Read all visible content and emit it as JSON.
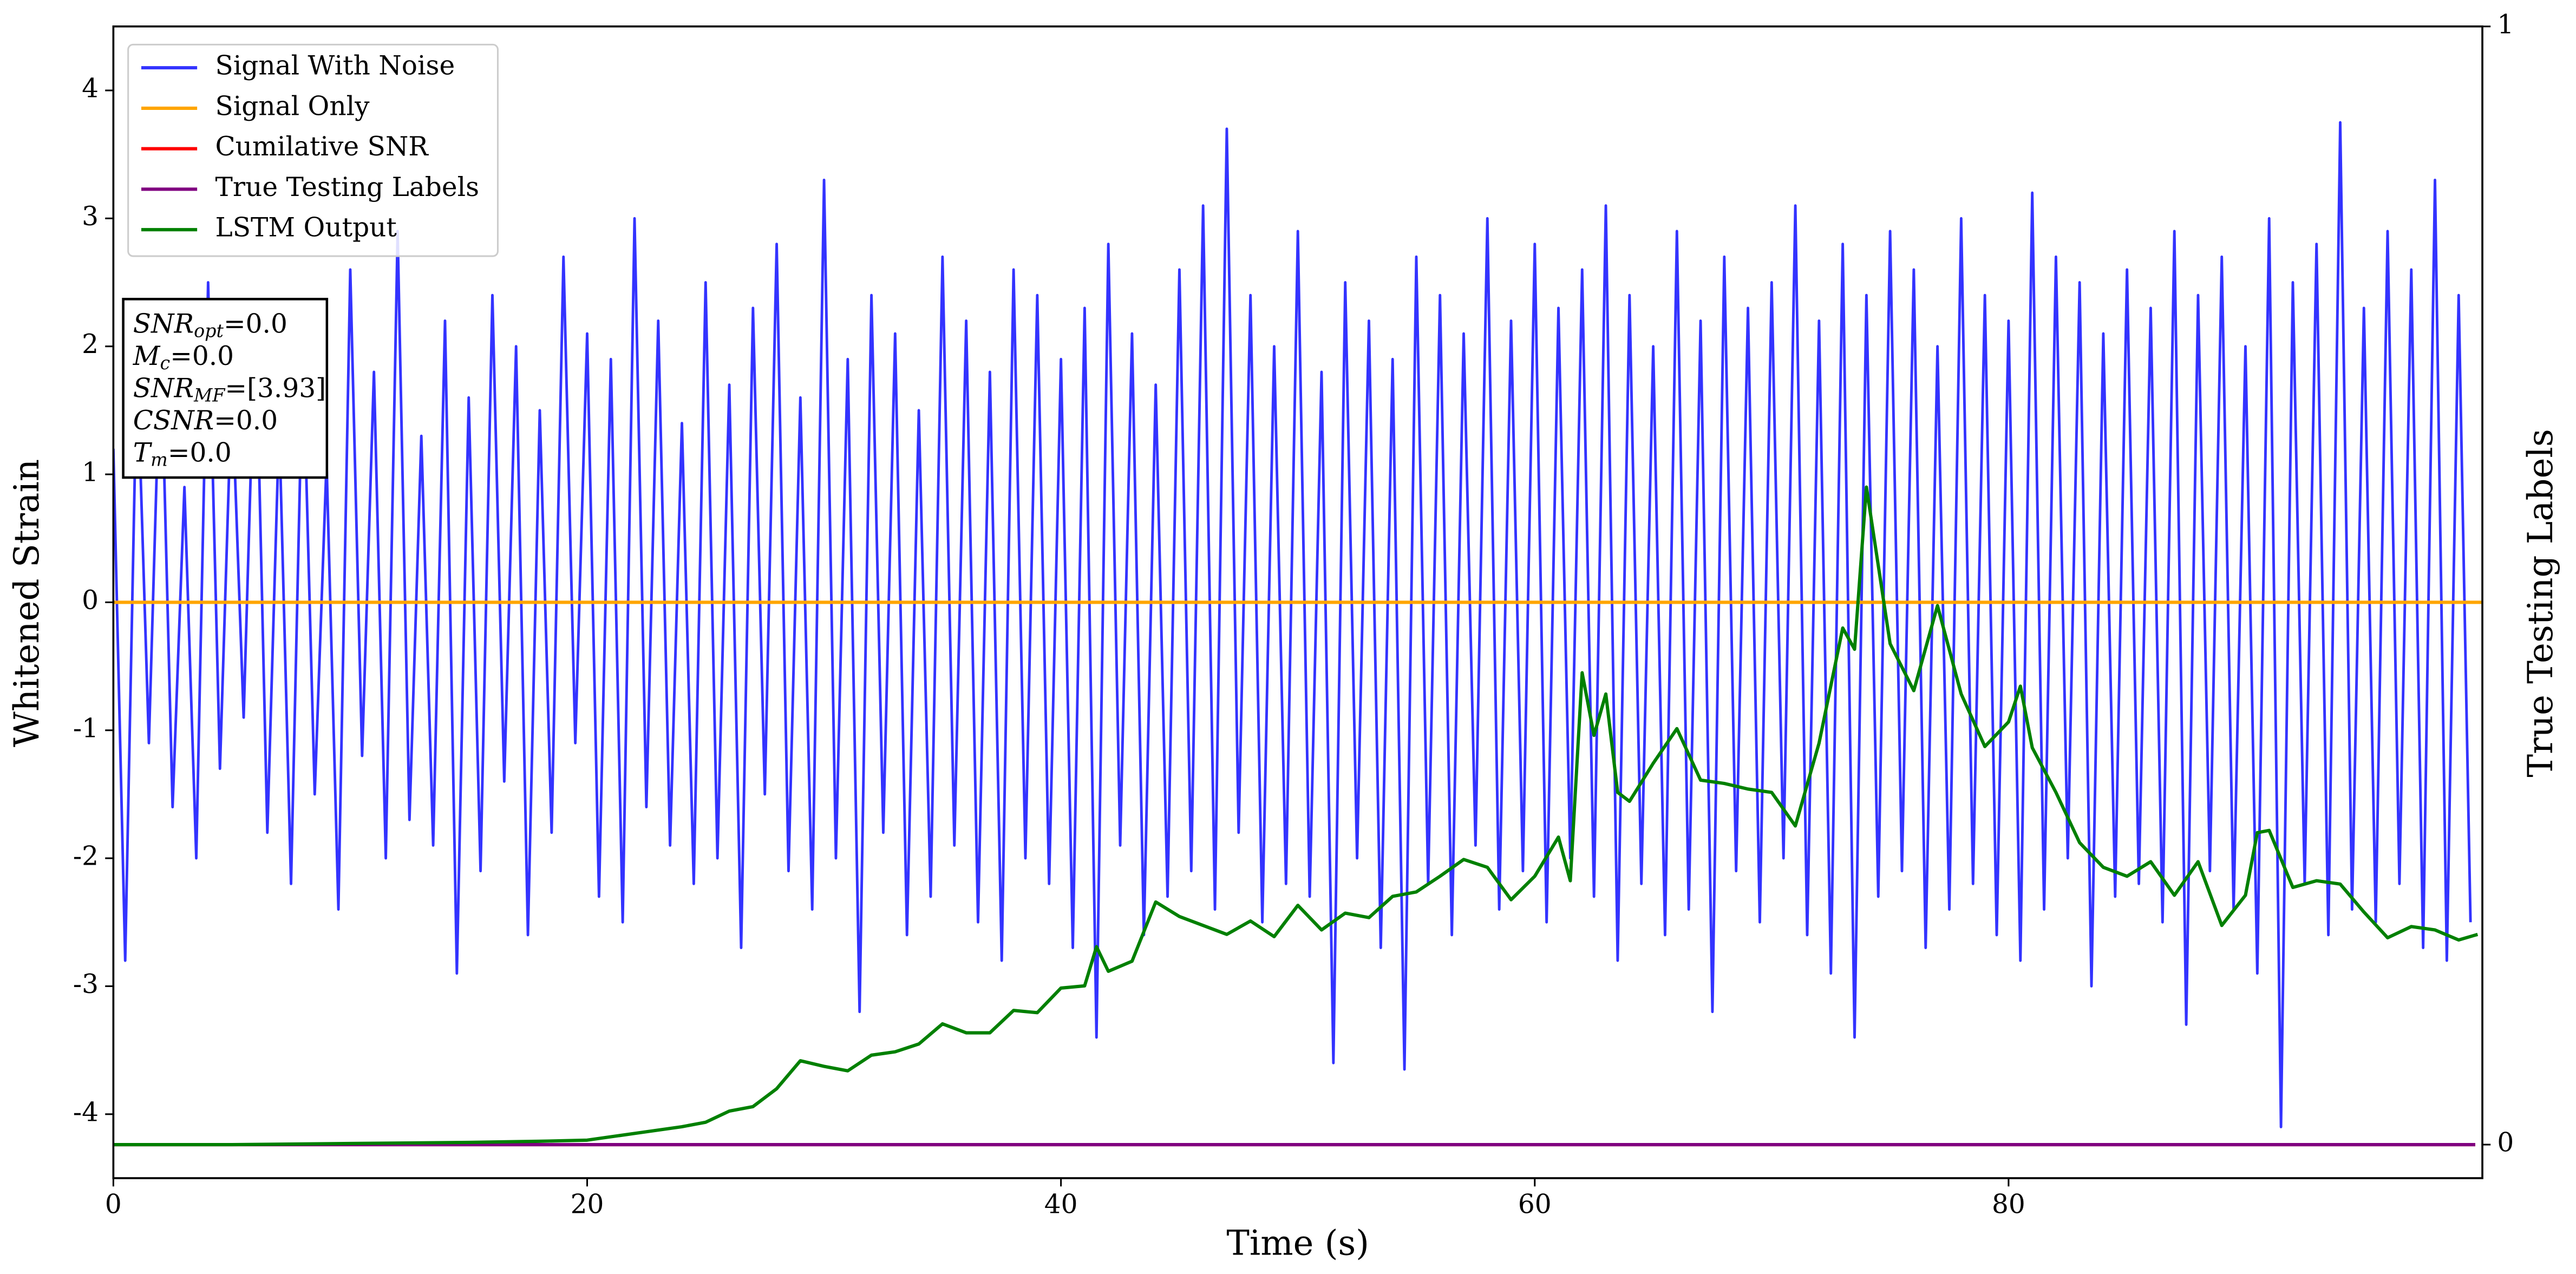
{
  "chart_data": {
    "type": "line",
    "xlabel": "Time (s)",
    "ylabel": "Whitened Strain",
    "y2label": "True Testing Labels",
    "xlim": [
      0,
      100
    ],
    "ylim": [
      -4.5,
      4.5
    ],
    "y2lim": [
      -0.03,
      1
    ],
    "xticks": [
      0,
      20,
      40,
      60,
      80
    ],
    "yticks": [
      -4,
      -3,
      -2,
      -1,
      0,
      1,
      2,
      3,
      4
    ],
    "y2ticks": [
      0,
      1
    ],
    "legend": "upper left",
    "annotations": [
      {
        "main": "SNR",
        "sub": "opt",
        "rest": "=0.0"
      },
      {
        "main": "M",
        "sub": "c",
        "rest": "=0.0"
      },
      {
        "main": "SNR",
        "sub": "MF",
        "rest": "=[3.93]"
      },
      {
        "main": "CSNR",
        "rest": "=0.0"
      },
      {
        "main": "T",
        "sub": "m",
        "rest": "=0.0"
      }
    ],
    "series": [
      {
        "name": "Signal With Noise",
        "color": "#3333ff",
        "axis": "y",
        "x": [
          0,
          0.5,
          1,
          1.5,
          2,
          2.5,
          3,
          3.5,
          4,
          4.5,
          5,
          5.5,
          6,
          6.5,
          7,
          7.5,
          8,
          8.5,
          9,
          9.5,
          10,
          10.5,
          11,
          11.5,
          12,
          12.5,
          13,
          13.5,
          14,
          14.5,
          15,
          15.5,
          16,
          16.5,
          17,
          17.5,
          18,
          18.5,
          19,
          19.5,
          20,
          20.5,
          21,
          21.5,
          22,
          22.5,
          23,
          23.5,
          24,
          24.5,
          25,
          25.5,
          26,
          26.5,
          27,
          27.5,
          28,
          28.5,
          29,
          29.5,
          30,
          30.5,
          31,
          31.5,
          32,
          32.5,
          33,
          33.5,
          34,
          34.5,
          35,
          35.5,
          36,
          36.5,
          37,
          37.5,
          38,
          38.5,
          39,
          39.5,
          40,
          40.5,
          41,
          41.5,
          42,
          42.5,
          43,
          43.5,
          44,
          44.5,
          45,
          45.5,
          46,
          46.5,
          47,
          47.5,
          48,
          48.5,
          49,
          49.5,
          50,
          50.5,
          51,
          51.5,
          52,
          52.5,
          53,
          53.5,
          54,
          54.5,
          55,
          55.5,
          56,
          56.5,
          57,
          57.5,
          58,
          58.5,
          59,
          59.5,
          60,
          60.5,
          61,
          61.5,
          62,
          62.5,
          63,
          63.5,
          64,
          64.5,
          65,
          65.5,
          66,
          66.5,
          67,
          67.5,
          68,
          68.5,
          69,
          69.5,
          70,
          70.5,
          71,
          71.5,
          72,
          72.5,
          73,
          73.5,
          74,
          74.5,
          75,
          75.5,
          76,
          76.5,
          77,
          77.5,
          78,
          78.5,
          79,
          79.5,
          80,
          80.5,
          81,
          81.5,
          82,
          82.5,
          83,
          83.5,
          84,
          84.5,
          85,
          85.5,
          86,
          86.5,
          87,
          87.5,
          88,
          88.5,
          89,
          89.5,
          90,
          90.5,
          91,
          91.5,
          92,
          92.5,
          93,
          93.5,
          94,
          94.5,
          95,
          95.5,
          96,
          96.5,
          97,
          97.5,
          98,
          98.5,
          99,
          99.5
        ],
        "values": [
          1.2,
          -2.8,
          1.9,
          -1.1,
          2.1,
          -1.6,
          0.9,
          -2.0,
          2.5,
          -1.3,
          1.7,
          -0.9,
          2.3,
          -1.8,
          1.4,
          -2.2,
          2.0,
          -1.5,
          1.1,
          -2.4,
          2.6,
          -1.2,
          1.8,
          -2.0,
          2.9,
          -1.7,
          1.3,
          -1.9,
          2.2,
          -2.9,
          1.6,
          -2.1,
          2.4,
          -1.4,
          2.0,
          -2.6,
          1.5,
          -1.8,
          2.7,
          -1.1,
          2.1,
          -2.3,
          1.9,
          -2.5,
          3.0,
          -1.6,
          2.2,
          -1.9,
          1.4,
          -2.2,
          2.5,
          -2.0,
          1.7,
          -2.7,
          2.3,
          -1.5,
          2.8,
          -2.1,
          1.6,
          -2.4,
          3.3,
          -2.0,
          1.9,
          -3.2,
          2.4,
          -1.8,
          2.1,
          -2.6,
          1.5,
          -2.3,
          2.7,
          -1.9,
          2.2,
          -2.5,
          1.8,
          -2.8,
          2.6,
          -2.0,
          2.4,
          -2.2,
          1.9,
          -2.7,
          2.3,
          -3.4,
          2.8,
          -1.9,
          2.1,
          -2.6,
          1.7,
          -2.3,
          2.6,
          -2.1,
          3.1,
          -2.4,
          3.7,
          -1.8,
          2.4,
          -2.5,
          2.0,
          -2.2,
          2.9,
          -2.3,
          1.8,
          -3.6,
          2.5,
          -2.0,
          2.2,
          -2.7,
          1.9,
          -3.65,
          2.7,
          -2.2,
          2.4,
          -2.6,
          2.1,
          -1.9,
          3.0,
          -2.4,
          2.2,
          -2.1,
          2.8,
          -2.5,
          2.3,
          -2.0,
          2.6,
          -2.3,
          3.1,
          -2.8,
          2.4,
          -2.2,
          2.0,
          -2.6,
          2.9,
          -2.4,
          2.2,
          -3.2,
          2.7,
          -2.1,
          2.3,
          -2.5,
          2.5,
          -2.0,
          3.1,
          -2.6,
          2.2,
          -2.9,
          2.8,
          -3.4,
          2.4,
          -2.3,
          2.9,
          -2.1,
          2.6,
          -2.7,
          2.0,
          -2.4,
          3.0,
          -2.2,
          2.4,
          -2.6,
          2.2,
          -2.8,
          3.2,
          -2.4,
          2.7,
          -2.0,
          2.5,
          -3.0,
          2.1,
          -2.3,
          2.6,
          -2.2,
          2.3,
          -2.5,
          2.9,
          -3.3,
          2.4,
          -2.1,
          2.7,
          -2.4,
          2.0,
          -2.9,
          3.0,
          -4.1,
          2.5,
          -2.2,
          2.8,
          -2.6,
          3.75,
          -2.4,
          2.3,
          -2.5,
          2.9,
          -2.2,
          2.6,
          -2.7,
          3.3,
          -2.8,
          2.4,
          -2.5
        ]
      },
      {
        "name": "Signal Only",
        "color": "#ffa500",
        "axis": "y",
        "x": [
          0,
          100
        ],
        "values": [
          0,
          0
        ]
      },
      {
        "name": "Cumilative SNR",
        "color": "#ff0000",
        "axis": "y2",
        "x": [
          0,
          99.7
        ],
        "values": [
          0,
          0
        ]
      },
      {
        "name": "True Testing Labels",
        "color": "#800080",
        "axis": "y2",
        "x": [
          0,
          99.7
        ],
        "values": [
          0,
          0
        ]
      },
      {
        "name": "LSTM Output",
        "color": "#008000",
        "axis": "y2",
        "x": [
          0,
          5,
          10,
          15,
          18,
          20,
          22,
          24,
          25,
          26,
          27,
          28,
          29,
          30,
          31,
          32,
          33,
          34,
          35,
          36,
          37,
          38,
          39,
          40,
          41,
          41.5,
          42,
          43,
          44,
          45,
          46,
          47,
          48,
          49,
          50,
          51,
          52,
          53,
          54,
          55,
          56,
          57,
          58,
          59,
          60,
          61,
          61.5,
          62,
          62.5,
          63,
          63.5,
          64,
          65,
          66,
          67,
          68,
          69,
          70,
          71,
          72,
          73,
          73.5,
          74,
          75,
          76,
          77,
          78,
          79,
          80,
          80.5,
          81,
          82,
          83,
          84,
          85,
          86,
          87,
          88,
          89,
          90,
          90.5,
          91,
          92,
          93,
          94,
          95,
          96,
          97,
          98,
          99,
          99.8
        ],
        "values": [
          0,
          0,
          0.001,
          0.002,
          0.003,
          0.004,
          0.01,
          0.016,
          0.02,
          0.03,
          0.034,
          0.05,
          0.075,
          0.07,
          0.066,
          0.08,
          0.083,
          0.09,
          0.108,
          0.1,
          0.1,
          0.12,
          0.118,
          0.14,
          0.142,
          0.177,
          0.155,
          0.164,
          0.217,
          0.204,
          0.196,
          0.188,
          0.2,
          0.186,
          0.214,
          0.192,
          0.207,
          0.203,
          0.222,
          0.226,
          0.24,
          0.255,
          0.248,
          0.219,
          0.24,
          0.275,
          0.236,
          0.422,
          0.366,
          0.403,
          0.315,
          0.307,
          0.341,
          0.372,
          0.326,
          0.323,
          0.318,
          0.315,
          0.285,
          0.359,
          0.462,
          0.443,
          0.588,
          0.448,
          0.406,
          0.482,
          0.403,
          0.356,
          0.378,
          0.41,
          0.355,
          0.315,
          0.27,
          0.248,
          0.24,
          0.253,
          0.223,
          0.253,
          0.196,
          0.223,
          0.279,
          0.281,
          0.23,
          0.236,
          0.233,
          0.208,
          0.185,
          0.195,
          0.192,
          0.183,
          0.188
        ]
      }
    ]
  }
}
